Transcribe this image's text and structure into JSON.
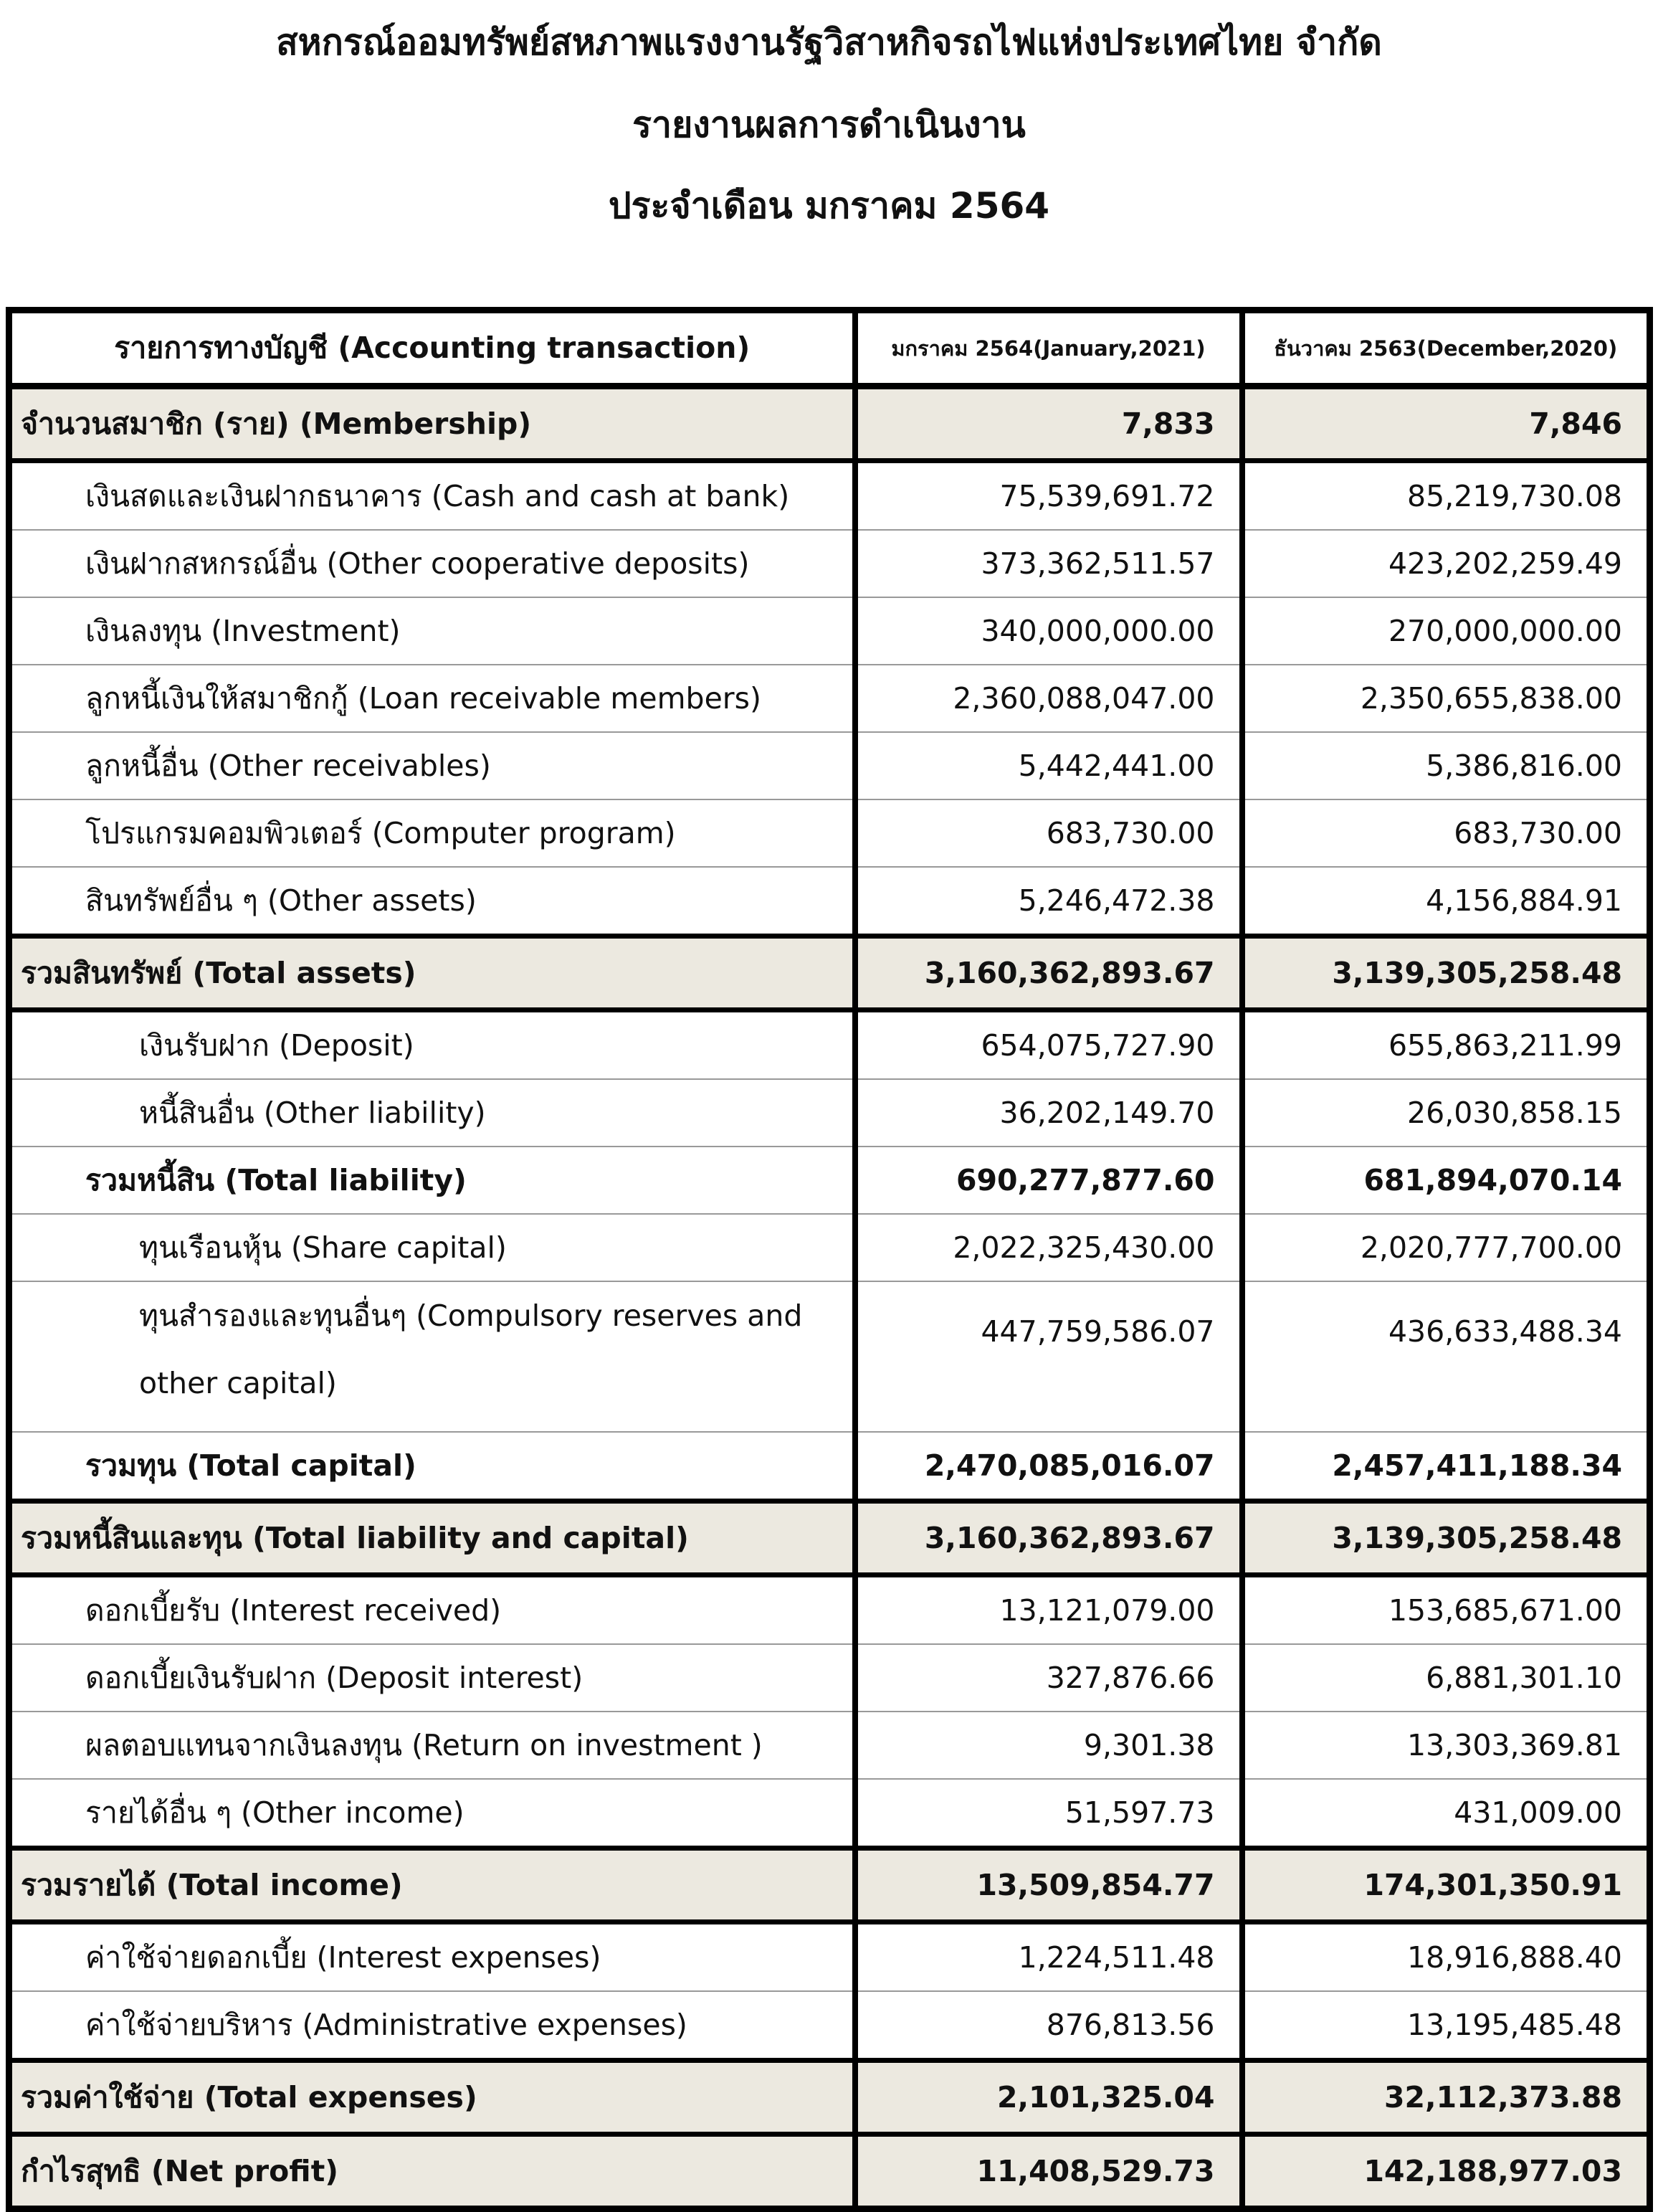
{
  "header": {
    "title": "สหกรณ์ออมทรัพย์สหภาพแรงงานรัฐวิสาหกิจรถไฟแห่งประเทศไทย จำกัด",
    "subtitle": "รายงานผลการดำเนินงาน",
    "period": "ประจำเดือน  มกราคม  2564"
  },
  "table": {
    "columns": [
      "รายการทางบัญชี (Accounting transaction)",
      "มกราคม 2564(January,2021)",
      "ธันวาคม 2563(December,2020)"
    ],
    "rows": [
      [
        "จำนวนสมาชิก (ราย) (Membership)",
        "7,833",
        "7,846"
      ],
      [
        "เงินสดและเงินฝากธนาคาร (Cash and cash at bank)",
        "75,539,691.72",
        "85,219,730.08"
      ],
      [
        "เงินฝากสหกรณ์อื่น (Other cooperative deposits)",
        "373,362,511.57",
        "423,202,259.49"
      ],
      [
        "เงินลงทุน (Investment)",
        "340,000,000.00",
        "270,000,000.00"
      ],
      [
        "ลูกหนี้เงินให้สมาชิกกู้ (Loan receivable members)",
        "2,360,088,047.00",
        "2,350,655,838.00"
      ],
      [
        "ลูกหนี้อื่น (Other receivables)",
        "5,442,441.00",
        "5,386,816.00"
      ],
      [
        "โปรแกรมคอมพิวเตอร์ (Computer program)",
        "683,730.00",
        "683,730.00"
      ],
      [
        "สินทรัพย์อื่น ๆ (Other assets)",
        "5,246,472.38",
        "4,156,884.91"
      ],
      [
        "รวมสินทรัพย์ (Total assets)",
        "3,160,362,893.67",
        "3,139,305,258.48"
      ],
      [
        "เงินรับฝาก (Deposit)",
        "654,075,727.90",
        "655,863,211.99"
      ],
      [
        "หนี้สินอื่น (Other liability)",
        "36,202,149.70",
        "26,030,858.15"
      ],
      [
        "รวมหนี้สิน (Total liability)",
        "690,277,877.60",
        "681,894,070.14"
      ],
      [
        "ทุนเรือนหุ้น (Share capital)",
        "2,022,325,430.00",
        "2,020,777,700.00"
      ],
      [
        "ทุนสำรองและทุนอื่นๆ (Compulsory reserves and other capital)",
        "447,759,586.07",
        "436,633,488.34"
      ],
      [
        "รวมทุน (Total capital)",
        "2,470,085,016.07",
        "2,457,411,188.34"
      ],
      [
        "รวมหนี้สินและทุน (Total liability and capital)",
        "3,160,362,893.67",
        "3,139,305,258.48"
      ],
      [
        "ดอกเบี้ยรับ (Interest received)",
        "13,121,079.00",
        "153,685,671.00"
      ],
      [
        "ดอกเบี้ยเงินรับฝาก (Deposit interest)",
        "327,876.66",
        "6,881,301.10"
      ],
      [
        "ผลตอบแทนจากเงินลงทุน (Return on investment )",
        "9,301.38",
        "13,303,369.81"
      ],
      [
        "รายได้อื่น ๆ (Other income)",
        "51,597.73",
        "431,009.00"
      ],
      [
        "รวมรายได้ (Total income)",
        "13,509,854.77",
        "174,301,350.91"
      ],
      [
        "ค่าใช้จ่ายดอกเบี้ย (Interest expenses)",
        "1,224,511.48",
        "18,916,888.40"
      ],
      [
        "ค่าใช้จ่ายบริหาร (Administrative expenses)",
        "876,813.56",
        "13,195,485.48"
      ],
      [
        "รวมค่าใช้จ่าย (Total expenses)",
        "2,101,325.04",
        "32,112,373.88"
      ],
      [
        "กำไรสุทธิ (Net profit)",
        "11,408,529.73",
        "142,188,977.03"
      ]
    ]
  }
}
